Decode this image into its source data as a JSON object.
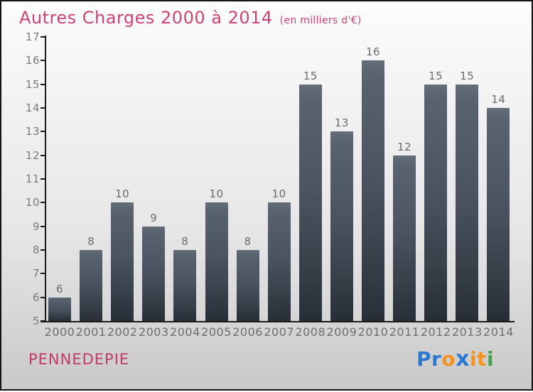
{
  "title": {
    "main": "Autres Charges 2000 à 2014",
    "unit": "(en milliers d'€)"
  },
  "chart_data": {
    "type": "bar",
    "title": "Autres Charges 2000 à 2014",
    "subtitle": "(en milliers d'€)",
    "categories": [
      "2000",
      "2001",
      "2002",
      "2003",
      "2004",
      "2005",
      "2006",
      "2007",
      "2008",
      "2009",
      "2010",
      "2011",
      "2012",
      "2013",
      "2014"
    ],
    "values": [
      6,
      8,
      10,
      9,
      8,
      10,
      8,
      10,
      15,
      13,
      16,
      12,
      15,
      15,
      14
    ],
    "xlabel": "",
    "ylabel": "",
    "ylim": [
      5,
      17
    ],
    "yticks": [
      5,
      6,
      7,
      8,
      9,
      10,
      11,
      12,
      13,
      14,
      15,
      16,
      17
    ],
    "grid": false,
    "legend": null,
    "value_labels": true
  },
  "footer": {
    "commune": "PENNEDEPIE"
  },
  "logo": {
    "name": "Proxiti",
    "letters": [
      {
        "ch": "P",
        "color": "#2a79d2",
        "x": false
      },
      {
        "ch": "r",
        "color": "#2a79d2",
        "x": false
      },
      {
        "ch": "o",
        "color": "#f6921e",
        "x": false
      },
      {
        "ch": "x",
        "color": "#2a79d2",
        "x": true
      },
      {
        "ch": "i",
        "color": "#f6921e",
        "x": false
      },
      {
        "ch": "t",
        "color": "#f6921e",
        "x": false
      },
      {
        "ch": "i",
        "color": "#3fa447",
        "x": false
      }
    ]
  },
  "colors": {
    "title": "#cc4470",
    "commune": "#c23a68",
    "bar_top": "#5b6471",
    "bar_bottom": "#2b323b",
    "axis": "#1a1a1a",
    "tick_label": "#7a7a7a",
    "value_label": "#6b6b6b"
  }
}
